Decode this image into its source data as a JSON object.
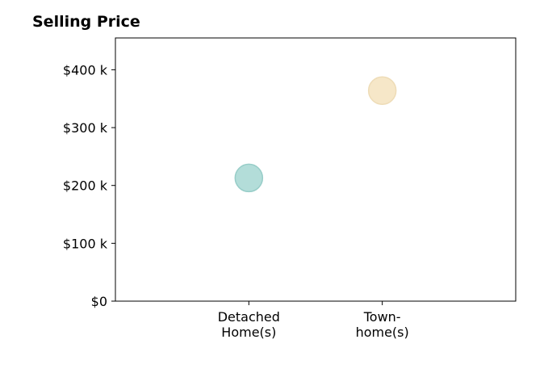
{
  "chart_data": {
    "type": "scatter",
    "title": "Selling Price",
    "xlabel": "",
    "ylabel": "",
    "categories": [
      [
        "Detached",
        "Home(s)"
      ],
      [
        "Town-",
        "home(s)"
      ]
    ],
    "values": [
      213000,
      364000
    ],
    "point_colors": [
      "#b3ddd9",
      "#f6e7c8"
    ],
    "point_stroke_colors": [
      "#97cdc8",
      "#eedcb7"
    ],
    "yticks": [
      0,
      100000,
      200000,
      300000,
      400000
    ],
    "ytick_labels": [
      "$0",
      "$100 k",
      "$200 k",
      "$300 k",
      "$400 k"
    ],
    "ylim": [
      0,
      455000
    ],
    "xlim": [
      0,
      3
    ],
    "grid": false,
    "legend": "none"
  }
}
